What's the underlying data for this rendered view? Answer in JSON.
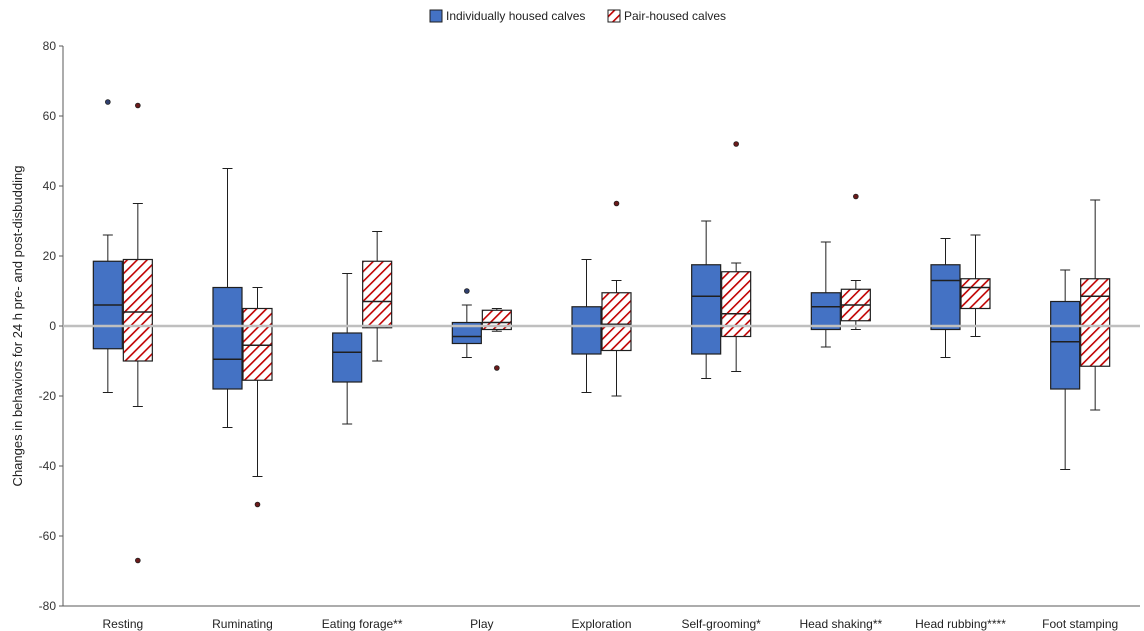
{
  "chart_data": {
    "type": "box",
    "title": "",
    "xlabel": "",
    "ylabel": "Changes in behaviors for 24 h pre- and post-disbudding",
    "ylim": [
      -80,
      80
    ],
    "yticks": [
      80,
      60,
      40,
      20,
      0,
      -20,
      -40,
      -60,
      -80
    ],
    "grid": false,
    "legend_position": "top-center",
    "categories": [
      "Resting",
      "Ruminating",
      "Eating forage**",
      "Play",
      "Exploration",
      "Self-grooming*",
      "Head shaking**",
      "Head rubbing****",
      "Foot stamping"
    ],
    "series": [
      {
        "name": "Individually housed calves",
        "color": "#4472C4",
        "pattern": "solid",
        "boxes": [
          {
            "whisker_low": -19,
            "q1": -6.5,
            "median": 6,
            "q3": 18.5,
            "whisker_high": 26,
            "outliers": [
              64
            ]
          },
          {
            "whisker_low": -29,
            "q1": -18,
            "median": -9.5,
            "q3": 11,
            "whisker_high": 45,
            "outliers": []
          },
          {
            "whisker_low": -28,
            "q1": -16,
            "median": -7.5,
            "q3": -2,
            "whisker_high": 15,
            "outliers": []
          },
          {
            "whisker_low": -9,
            "q1": -5,
            "median": -3,
            "q3": 1,
            "whisker_high": 6,
            "outliers": [
              10
            ]
          },
          {
            "whisker_low": -19,
            "q1": -8,
            "median": 0,
            "q3": 5.5,
            "whisker_high": 19,
            "outliers": []
          },
          {
            "whisker_low": -15,
            "q1": -8,
            "median": 8.5,
            "q3": 17.5,
            "whisker_high": 30,
            "outliers": []
          },
          {
            "whisker_low": -6,
            "q1": -1,
            "median": 5.5,
            "q3": 9.5,
            "whisker_high": 24,
            "outliers": []
          },
          {
            "whisker_low": -9,
            "q1": -1,
            "median": 13,
            "q3": 17.5,
            "whisker_high": 25,
            "outliers": []
          },
          {
            "whisker_low": -41,
            "q1": -18,
            "median": -4.5,
            "q3": 7,
            "whisker_high": 16,
            "outliers": []
          }
        ]
      },
      {
        "name": "Pair-housed calves",
        "color": "#C00000",
        "pattern": "hatched",
        "boxes": [
          {
            "whisker_low": -23,
            "q1": -10,
            "median": 4,
            "q3": 19,
            "whisker_high": 35,
            "outliers": [
              63,
              -67
            ]
          },
          {
            "whisker_low": -43,
            "q1": -15.5,
            "median": -5.5,
            "q3": 5,
            "whisker_high": 11,
            "outliers": [
              -51
            ]
          },
          {
            "whisker_low": -10,
            "q1": -0.5,
            "median": 7,
            "q3": 18.5,
            "whisker_high": 27,
            "outliers": []
          },
          {
            "whisker_low": -1.5,
            "q1": -1,
            "median": 1,
            "q3": 4.5,
            "whisker_high": 5,
            "outliers": [
              -12
            ]
          },
          {
            "whisker_low": -20,
            "q1": -7,
            "median": 0.5,
            "q3": 9.5,
            "whisker_high": 13,
            "outliers": [
              35
            ]
          },
          {
            "whisker_low": -13,
            "q1": -3,
            "median": 3.5,
            "q3": 15.5,
            "whisker_high": 18,
            "outliers": [
              52
            ]
          },
          {
            "whisker_low": -1,
            "q1": 1.5,
            "median": 6,
            "q3": 10.5,
            "whisker_high": 13,
            "outliers": [
              37
            ]
          },
          {
            "whisker_low": -3,
            "q1": 5,
            "median": 11,
            "q3": 13.5,
            "whisker_high": 26,
            "outliers": []
          },
          {
            "whisker_low": -24,
            "q1": -11.5,
            "median": 8.5,
            "q3": 13.5,
            "whisker_high": 36,
            "outliers": []
          }
        ]
      }
    ]
  }
}
